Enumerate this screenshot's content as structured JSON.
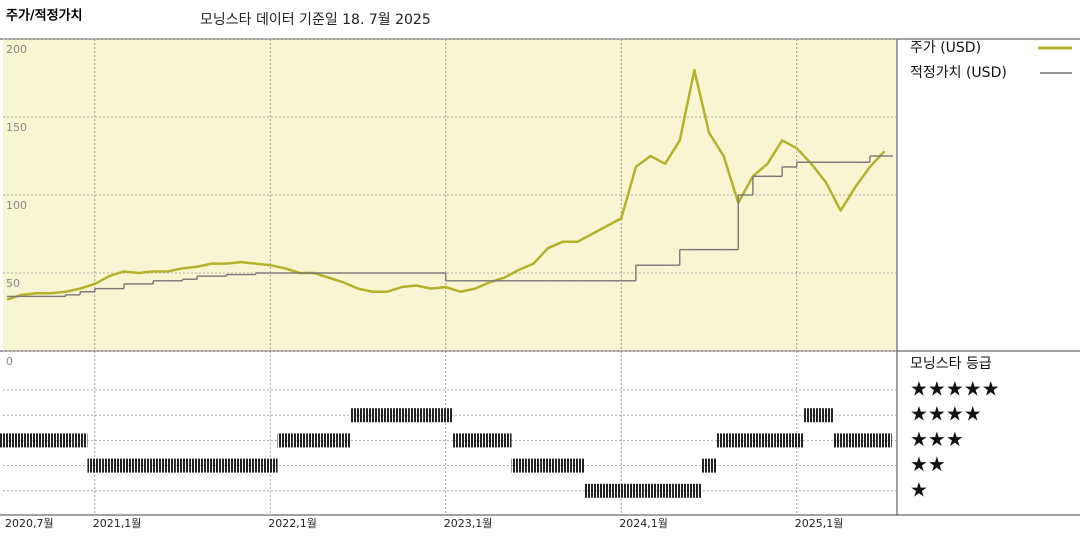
{
  "chart_data": {
    "type": "line",
    "title": "주가/적정가치",
    "subtitle": "모닝스타 데이터 기준일 18. 7월 2025",
    "x": [
      "2020-07",
      "2020-08",
      "2020-09",
      "2020-10",
      "2020-11",
      "2020-12",
      "2021-01",
      "2021-02",
      "2021-03",
      "2021-04",
      "2021-05",
      "2021-06",
      "2021-07",
      "2021-08",
      "2021-09",
      "2021-10",
      "2021-11",
      "2021-12",
      "2022-01",
      "2022-02",
      "2022-03",
      "2022-04",
      "2022-05",
      "2022-06",
      "2022-07",
      "2022-08",
      "2022-09",
      "2022-10",
      "2022-11",
      "2022-12",
      "2023-01",
      "2023-02",
      "2023-03",
      "2023-04",
      "2023-05",
      "2023-06",
      "2023-07",
      "2023-08",
      "2023-09",
      "2023-10",
      "2023-11",
      "2023-12",
      "2024-01",
      "2024-02",
      "2024-03",
      "2024-04",
      "2024-05",
      "2024-06",
      "2024-07",
      "2024-08",
      "2024-09",
      "2024-10",
      "2024-11",
      "2024-12",
      "2025-01",
      "2025-02",
      "2025-03",
      "2025-04",
      "2025-05",
      "2025-06",
      "2025-07"
    ],
    "series": [
      {
        "name": "주가 (USD)",
        "color": "#b3b32b",
        "values": [
          33,
          36,
          37,
          37,
          38,
          40,
          43,
          48,
          51,
          50,
          51,
          51,
          53,
          54,
          56,
          56,
          57,
          56,
          55,
          53,
          50,
          50,
          47,
          44,
          40,
          38,
          38,
          41,
          42,
          40,
          41,
          38,
          40,
          44,
          47,
          52,
          56,
          66,
          70,
          70,
          75,
          80,
          85,
          118,
          125,
          120,
          135,
          180,
          140,
          125,
          95,
          112,
          120,
          135,
          130,
          120,
          108,
          90,
          105,
          118,
          128
        ]
      },
      {
        "name": "적정가치 (USD)",
        "color": "#777777",
        "step": true,
        "values": [
          35,
          35,
          35,
          35,
          36,
          38,
          40,
          40,
          43,
          43,
          45,
          45,
          46,
          48,
          48,
          49,
          49,
          50,
          50,
          50,
          50,
          50,
          50,
          50,
          50,
          50,
          50,
          50,
          50,
          50,
          45,
          45,
          45,
          45,
          45,
          45,
          45,
          45,
          45,
          45,
          45,
          45,
          45,
          55,
          55,
          55,
          65,
          65,
          65,
          65,
          100,
          112,
          112,
          118,
          121,
          121,
          121,
          121,
          121,
          125,
          125
        ]
      }
    ],
    "ylim": [
      0,
      200
    ],
    "yticks": [
      0,
      50,
      100,
      150,
      200
    ],
    "grid": true,
    "xticks": [
      {
        "value": "2020-07",
        "label": "2020,7월"
      },
      {
        "value": "2021-01",
        "label": "2021,1월"
      },
      {
        "value": "2022-01",
        "label": "2022,1월"
      },
      {
        "value": "2023-01",
        "label": "2023,1월"
      },
      {
        "value": "2024-01",
        "label": "2024,1월"
      },
      {
        "value": "2025-01",
        "label": "2025,1월"
      }
    ],
    "rating": {
      "title": "모닝스타 등급",
      "labels": [
        "★★★★★",
        "★★★★",
        "★★★",
        "★★",
        "★"
      ],
      "values": [
        3,
        3,
        3,
        3,
        3,
        3,
        2,
        2,
        2,
        2,
        2,
        2,
        2,
        2,
        2,
        2,
        2,
        2,
        2,
        3,
        3,
        3,
        3,
        3,
        4,
        4,
        4,
        4,
        4,
        4,
        4,
        3,
        3,
        3,
        3,
        2,
        2,
        2,
        2,
        2,
        1,
        1,
        1,
        1,
        1,
        1,
        1,
        1,
        2,
        3,
        3,
        3,
        3,
        3,
        3,
        4,
        4,
        3,
        3,
        3,
        3
      ]
    }
  }
}
